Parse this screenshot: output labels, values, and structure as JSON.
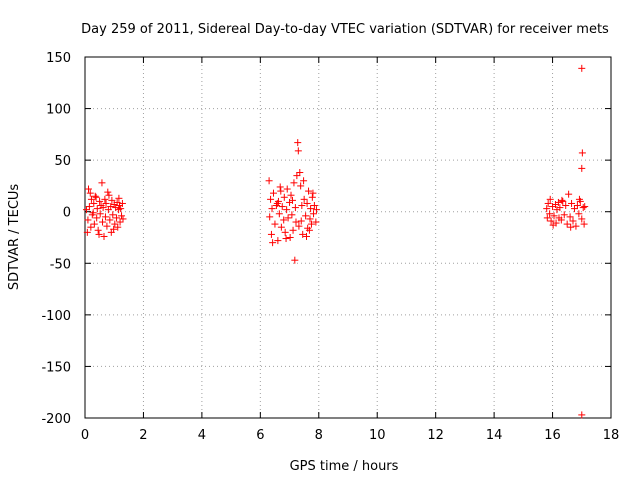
{
  "chart_data": {
    "type": "scatter",
    "title": "Day 259 of 2011, Sidereal Day-to-day VTEC variation (SDTVAR) for receiver mets",
    "xlabel": "GPS time / hours",
    "ylabel": "SDTVAR / TECUs",
    "xlim": [
      0,
      18
    ],
    "ylim": [
      -200,
      150
    ],
    "xticks": [
      0,
      2,
      4,
      6,
      8,
      10,
      12,
      14,
      16,
      18
    ],
    "yticks": [
      -200,
      -150,
      -100,
      -50,
      0,
      50,
      100,
      150
    ],
    "grid": true,
    "marker": "+",
    "color": "#ff0000",
    "series": [
      {
        "name": "SDTVAR",
        "points": [
          [
            0.05,
            2
          ],
          [
            0.1,
            -8
          ],
          [
            0.12,
            22
          ],
          [
            0.15,
            5
          ],
          [
            0.2,
            -15
          ],
          [
            0.22,
            12
          ],
          [
            0.25,
            -3
          ],
          [
            0.3,
            8
          ],
          [
            0.32,
            -12
          ],
          [
            0.35,
            15
          ],
          [
            0.4,
            -6
          ],
          [
            0.42,
            3
          ],
          [
            0.45,
            -18
          ],
          [
            0.5,
            10
          ],
          [
            0.52,
            -2
          ],
          [
            0.55,
            6
          ],
          [
            0.58,
            28
          ],
          [
            0.6,
            -10
          ],
          [
            0.62,
            4
          ],
          [
            0.65,
            -24
          ],
          [
            0.68,
            12
          ],
          [
            0.7,
            -5
          ],
          [
            0.72,
            8
          ],
          [
            0.75,
            -14
          ],
          [
            0.8,
            2
          ],
          [
            0.82,
            16
          ],
          [
            0.85,
            -8
          ],
          [
            0.88,
            5
          ],
          [
            0.9,
            -20
          ],
          [
            0.92,
            11
          ],
          [
            0.95,
            -3
          ],
          [
            1.0,
            7
          ],
          [
            1.02,
            -12
          ],
          [
            1.05,
            4
          ],
          [
            1.08,
            -6
          ],
          [
            1.1,
            9
          ],
          [
            1.12,
            -15
          ],
          [
            1.15,
            2
          ],
          [
            1.18,
            6
          ],
          [
            1.2,
            -10
          ],
          [
            1.22,
            3
          ],
          [
            1.25,
            -4
          ],
          [
            1.28,
            8
          ],
          [
            1.3,
            -7
          ],
          [
            0.08,
            -20
          ],
          [
            0.18,
            18
          ],
          [
            0.28,
            -1
          ],
          [
            0.38,
            14
          ],
          [
            0.48,
            -22
          ],
          [
            0.78,
            19
          ],
          [
            0.98,
            -17
          ],
          [
            1.16,
            13
          ],
          [
            6.3,
            30
          ],
          [
            6.32,
            -5
          ],
          [
            6.35,
            12
          ],
          [
            6.38,
            -22
          ],
          [
            6.4,
            3
          ],
          [
            6.45,
            18
          ],
          [
            6.5,
            -12
          ],
          [
            6.55,
            6
          ],
          [
            6.6,
            -28
          ],
          [
            6.62,
            10
          ],
          [
            6.65,
            -2
          ],
          [
            6.7,
            20
          ],
          [
            6.72,
            -15
          ],
          [
            6.75,
            5
          ],
          [
            6.8,
            -8
          ],
          [
            6.82,
            14
          ],
          [
            6.85,
            -20
          ],
          [
            6.9,
            2
          ],
          [
            6.92,
            22
          ],
          [
            6.95,
            -6
          ],
          [
            7.0,
            9
          ],
          [
            7.02,
            -25
          ],
          [
            7.05,
            16
          ],
          [
            7.08,
            -3
          ],
          [
            7.1,
            11
          ],
          [
            7.12,
            -18
          ],
          [
            7.15,
            28
          ],
          [
            7.18,
            -47
          ],
          [
            7.2,
            4
          ],
          [
            7.22,
            -10
          ],
          [
            7.25,
            35
          ],
          [
            7.28,
            67
          ],
          [
            7.3,
            59
          ],
          [
            7.32,
            -14
          ],
          [
            7.35,
            38
          ],
          [
            7.38,
            25
          ],
          [
            7.4,
            -9
          ],
          [
            7.42,
            6
          ],
          [
            7.45,
            -22
          ],
          [
            7.5,
            12
          ],
          [
            7.55,
            -4
          ],
          [
            7.6,
            8
          ],
          [
            7.62,
            -16
          ],
          [
            7.65,
            20
          ],
          [
            7.7,
            -7
          ],
          [
            7.72,
            3
          ],
          [
            7.75,
            -12
          ],
          [
            7.8,
            18
          ],
          [
            7.82,
            -2
          ],
          [
            7.85,
            6
          ],
          [
            7.9,
            -10
          ],
          [
            7.92,
            2
          ],
          [
            6.42,
            -30
          ],
          [
            6.68,
            24
          ],
          [
            6.88,
            -26
          ],
          [
            7.48,
            30
          ],
          [
            7.58,
            -24
          ],
          [
            7.78,
            14
          ],
          [
            6.58,
            8
          ],
          [
            7.68,
            -18
          ],
          [
            15.8,
            3
          ],
          [
            15.82,
            -6
          ],
          [
            15.85,
            8
          ],
          [
            15.9,
            -2
          ],
          [
            15.92,
            12
          ],
          [
            15.95,
            -9
          ],
          [
            16.0,
            5
          ],
          [
            16.05,
            -4
          ],
          [
            16.1,
            7
          ],
          [
            16.12,
            -11
          ],
          [
            16.15,
            2
          ],
          [
            16.2,
            9
          ],
          [
            16.22,
            -6
          ],
          [
            16.25,
            4
          ],
          [
            16.3,
            -8
          ],
          [
            16.35,
            10
          ],
          [
            16.4,
            -3
          ],
          [
            16.45,
            6
          ],
          [
            16.5,
            -12
          ],
          [
            16.55,
            17
          ],
          [
            16.6,
            -5
          ],
          [
            16.65,
            8
          ],
          [
            16.7,
            -9
          ],
          [
            16.75,
            3
          ],
          [
            16.8,
            -14
          ],
          [
            16.85,
            6
          ],
          [
            16.9,
            -2
          ],
          [
            16.95,
            10
          ],
          [
            17.0,
            -7
          ],
          [
            17.05,
            4
          ],
          [
            17.08,
            -12
          ],
          [
            17.1,
            5
          ],
          [
            16.02,
            -13
          ],
          [
            16.32,
            11
          ],
          [
            16.62,
            -15
          ],
          [
            16.92,
            12
          ],
          [
            17.0,
            139
          ],
          [
            17.02,
            57
          ],
          [
            17.0,
            42
          ],
          [
            17.0,
            -197
          ]
        ]
      }
    ]
  }
}
